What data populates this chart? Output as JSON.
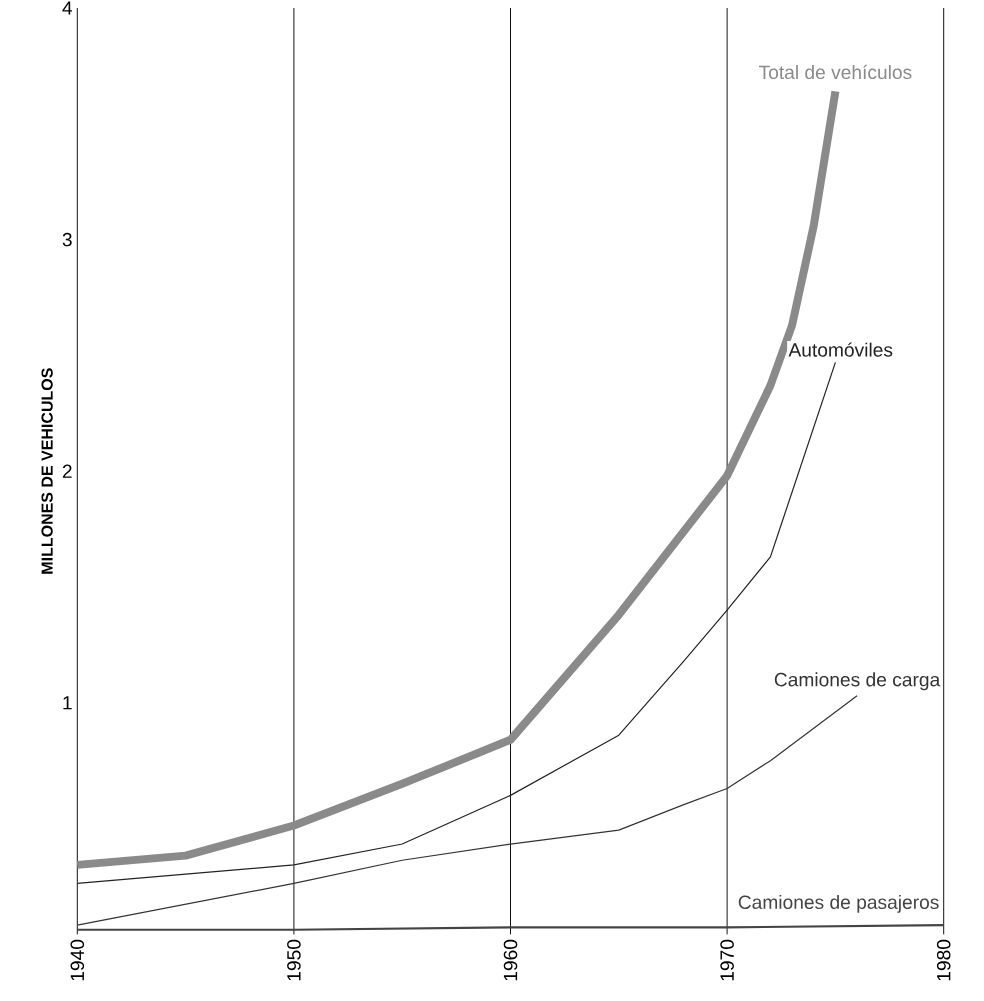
{
  "chart_data": {
    "type": "line",
    "ylabel": "MILLONES DE VEHICULOS",
    "xlim": [
      1940,
      1980
    ],
    "ylim": [
      0,
      4
    ],
    "xticks": [
      1940,
      1950,
      1960,
      1970,
      1980
    ],
    "yticks": [
      1,
      2,
      3,
      4
    ],
    "grid": "x",
    "series": [
      {
        "name": "Total de vehículos",
        "color": "#8a8a8a",
        "x": [
          1940,
          1945,
          1950,
          1955,
          1960,
          1965,
          1970,
          1972,
          1973,
          1974,
          1975
        ],
        "values": [
          0.3,
          0.34,
          0.47,
          0.65,
          0.84,
          1.38,
          1.98,
          2.37,
          2.63,
          3.06,
          3.64
        ]
      },
      {
        "name": "Automóviles",
        "color": "#222222",
        "x": [
          1940,
          1950,
          1955,
          1960,
          1965,
          1968,
          1970,
          1972,
          1975
        ],
        "values": [
          0.22,
          0.3,
          0.39,
          0.6,
          0.86,
          1.18,
          1.4,
          1.63,
          2.47
        ]
      },
      {
        "name": "Camiones de carga",
        "color": "#333333",
        "x": [
          1940,
          1950,
          1955,
          1960,
          1965,
          1968,
          1970,
          1972,
          1976
        ],
        "values": [
          0.04,
          0.22,
          0.32,
          0.39,
          0.45,
          0.56,
          0.63,
          0.75,
          1.03
        ]
      },
      {
        "name": "Camiones de pasajeros",
        "color": "#444444",
        "x": [
          1940,
          1950,
          1960,
          1970,
          1980
        ],
        "values": [
          0.02,
          0.02,
          0.03,
          0.03,
          0.04
        ]
      }
    ]
  }
}
